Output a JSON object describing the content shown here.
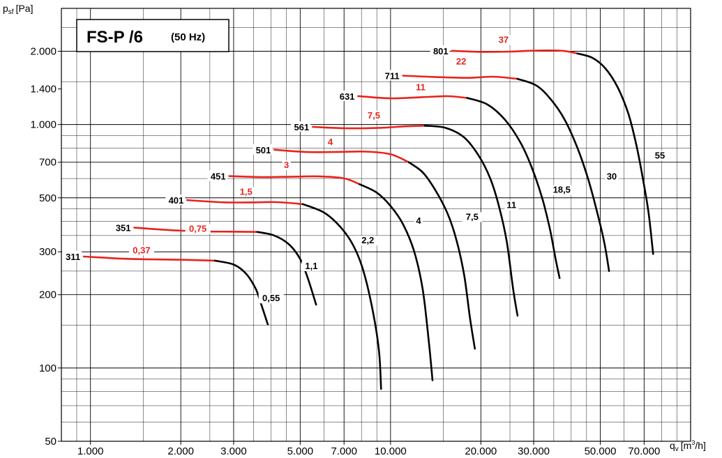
{
  "chart_data": {
    "type": "line",
    "title": "FS-P /6",
    "subtitle": "(50 Hz)",
    "ylabel": "p",
    "ylabel_sub": "sf",
    "ylabel_unit": "[Pa]",
    "xlabel": "q",
    "xlabel_sub": "v",
    "xlabel_unit_pre": "[m",
    "xlabel_unit_sup": "3",
    "xlabel_unit_post": "/h]",
    "x_scale": "log",
    "y_scale": "log",
    "xlim": [
      800,
      100000
    ],
    "ylim": [
      50,
      3000
    ],
    "grid": true,
    "x_ticks": [
      {
        "value": 1000,
        "label": "1.000"
      },
      {
        "value": 2000,
        "label": "2.000"
      },
      {
        "value": 3000,
        "label": "3.000"
      },
      {
        "value": 5000,
        "label": "5.000"
      },
      {
        "value": 7000,
        "label": "7.000"
      },
      {
        "value": 10000,
        "label": "10.000"
      },
      {
        "value": 20000,
        "label": "20.000"
      },
      {
        "value": 30000,
        "label": "30.000"
      },
      {
        "value": 50000,
        "label": "50.000"
      },
      {
        "value": 70000,
        "label": "70.000"
      }
    ],
    "y_ticks": [
      {
        "value": 50,
        "label": "50"
      },
      {
        "value": 100,
        "label": "100"
      },
      {
        "value": 200,
        "label": "200"
      },
      {
        "value": 300,
        "label": "300"
      },
      {
        "value": 500,
        "label": "500"
      },
      {
        "value": 700,
        "label": "700"
      },
      {
        "value": 1000,
        "label": "1.000"
      },
      {
        "value": 1400,
        "label": "1.400"
      },
      {
        "value": 2000,
        "label": "2.000"
      }
    ],
    "series_colors": {
      "stable": "#000000",
      "unstable": "#e8231c"
    },
    "series": [
      {
        "name": "311",
        "motor_kw": "0,37",
        "motor_kw_at": [
          1480,
          296
        ],
        "red": [
          [
            950,
            287
          ],
          [
            1300,
            281
          ],
          [
            1700,
            279
          ],
          [
            2100,
            278
          ],
          [
            2600,
            276
          ]
        ],
        "black": [
          [
            2600,
            276
          ],
          [
            3000,
            266
          ],
          [
            3300,
            244
          ],
          [
            3550,
            212
          ],
          [
            3700,
            184
          ],
          [
            3900,
            151
          ]
        ],
        "motor_curve_label": "0,55",
        "motor_curve_label_at": [
          4000,
          188
        ]
      },
      {
        "name": "351",
        "motor_kw": "0,75",
        "motor_kw_at": [
          2280,
          363
        ],
        "red": [
          [
            1400,
            377
          ],
          [
            1800,
            369
          ],
          [
            2300,
            364
          ],
          [
            2900,
            363
          ],
          [
            3600,
            362
          ]
        ],
        "black": [
          [
            3600,
            362
          ],
          [
            4100,
            350
          ],
          [
            4600,
            321
          ],
          [
            5000,
            280
          ],
          [
            5300,
            234
          ],
          [
            5650,
            182
          ]
        ],
        "motor_curve_label": "1,1",
        "motor_curve_label_at": [
          5450,
          255
        ]
      },
      {
        "name": "401",
        "motor_kw": "1,5",
        "motor_kw_at": [
          3300,
          515
        ],
        "red": [
          [
            2100,
            489
          ],
          [
            2800,
            479
          ],
          [
            3500,
            479
          ],
          [
            4200,
            480
          ],
          [
            5100,
            471
          ]
        ],
        "black": [
          [
            5100,
            471
          ],
          [
            6000,
            435
          ],
          [
            6800,
            380
          ],
          [
            7500,
            320
          ],
          [
            8100,
            253
          ],
          [
            8700,
            175
          ],
          [
            9150,
            118
          ],
          [
            9300,
            82
          ]
        ],
        "motor_curve_label": "2,2",
        "motor_curve_label_at": [
          8400,
          325
        ]
      },
      {
        "name": "451",
        "motor_kw": "3",
        "motor_kw_at": [
          4500,
          663
        ],
        "red": [
          [
            2900,
            614
          ],
          [
            3800,
            608
          ],
          [
            4800,
            611
          ],
          [
            5800,
            612
          ],
          [
            7000,
            601
          ],
          [
            7900,
            568
          ]
        ],
        "black": [
          [
            7900,
            568
          ],
          [
            9000,
            525
          ],
          [
            10000,
            463
          ],
          [
            11000,
            390
          ],
          [
            12000,
            300
          ],
          [
            12800,
            210
          ],
          [
            13400,
            130
          ],
          [
            13800,
            89
          ]
        ],
        "motor_curve_label": "4",
        "motor_curve_label_at": [
          12400,
          391
        ]
      },
      {
        "name": "501",
        "motor_kw": "4",
        "motor_kw_at": [
          6300,
          823
        ],
        "red": [
          [
            4100,
            788
          ],
          [
            5300,
            771
          ],
          [
            6800,
            772
          ],
          [
            8300,
            774
          ],
          [
            10000,
            755
          ],
          [
            11500,
            700
          ]
        ],
        "black": [
          [
            11500,
            700
          ],
          [
            12800,
            636
          ],
          [
            14100,
            538
          ],
          [
            15500,
            430
          ],
          [
            16600,
            334
          ],
          [
            17600,
            240
          ],
          [
            18400,
            160
          ],
          [
            19100,
            120
          ]
        ],
        "motor_curve_label": "7,5",
        "motor_curve_label_at": [
          18700,
          406
        ]
      },
      {
        "name": "561",
        "motor_kw": "7,5",
        "motor_kw_at": [
          8800,
          1060
        ],
        "red": [
          [
            5500,
            978
          ],
          [
            7200,
            965
          ],
          [
            9200,
            969
          ],
          [
            11200,
            983
          ],
          [
            13000,
            989
          ]
        ],
        "black": [
          [
            13000,
            989
          ],
          [
            15200,
            970
          ],
          [
            17500,
            890
          ],
          [
            19600,
            750
          ],
          [
            21500,
            600
          ],
          [
            23000,
            460
          ],
          [
            24400,
            330
          ],
          [
            25600,
            212
          ],
          [
            26500,
            164
          ]
        ],
        "motor_curve_label": "11",
        "motor_curve_label_at": [
          25300,
          453
        ]
      },
      {
        "name": "631",
        "motor_kw": "11",
        "motor_kw_at": [
          12600,
          1382
        ],
        "red": [
          [
            7800,
            1308
          ],
          [
            10000,
            1281
          ],
          [
            12700,
            1295
          ],
          [
            15500,
            1307
          ],
          [
            18000,
            1286
          ]
        ],
        "black": [
          [
            18000,
            1286
          ],
          [
            21000,
            1210
          ],
          [
            24000,
            1050
          ],
          [
            27000,
            850
          ],
          [
            29500,
            670
          ],
          [
            32000,
            500
          ],
          [
            34000,
            370
          ],
          [
            35500,
            280
          ],
          [
            36600,
            234
          ]
        ],
        "motor_curve_label": "18,5",
        "motor_curve_label_at": [
          37200,
          524
        ]
      },
      {
        "name": "711",
        "motor_kw": "22",
        "motor_kw_at": [
          17200,
          1762
        ],
        "red": [
          [
            11000,
            1588
          ],
          [
            14000,
            1568
          ],
          [
            18000,
            1555
          ],
          [
            22000,
            1572
          ],
          [
            26500,
            1540
          ]
        ],
        "black": [
          [
            26500,
            1540
          ],
          [
            30500,
            1450
          ],
          [
            34000,
            1280
          ],
          [
            38000,
            1050
          ],
          [
            42000,
            800
          ],
          [
            45500,
            600
          ],
          [
            48500,
            450
          ],
          [
            51500,
            330
          ],
          [
            53500,
            250
          ]
        ],
        "motor_curve_label": "30",
        "motor_curve_label_at": [
          54600,
          595
        ]
      },
      {
        "name": "801",
        "motor_kw": "37",
        "motor_kw_at": [
          23800,
          2168
        ],
        "red": [
          [
            16000,
            2008
          ],
          [
            20000,
            1988
          ],
          [
            25000,
            1994
          ],
          [
            31000,
            2013
          ],
          [
            37500,
            2008
          ],
          [
            42000,
            1957
          ]
        ],
        "black": [
          [
            42000,
            1957
          ],
          [
            47000,
            1880
          ],
          [
            52000,
            1700
          ],
          [
            57000,
            1430
          ],
          [
            62000,
            1110
          ],
          [
            66000,
            820
          ],
          [
            69500,
            590
          ],
          [
            72500,
            430
          ],
          [
            75000,
            294
          ]
        ],
        "motor_curve_label": "55",
        "motor_curve_label_at": [
          79000,
          724
        ]
      }
    ]
  }
}
